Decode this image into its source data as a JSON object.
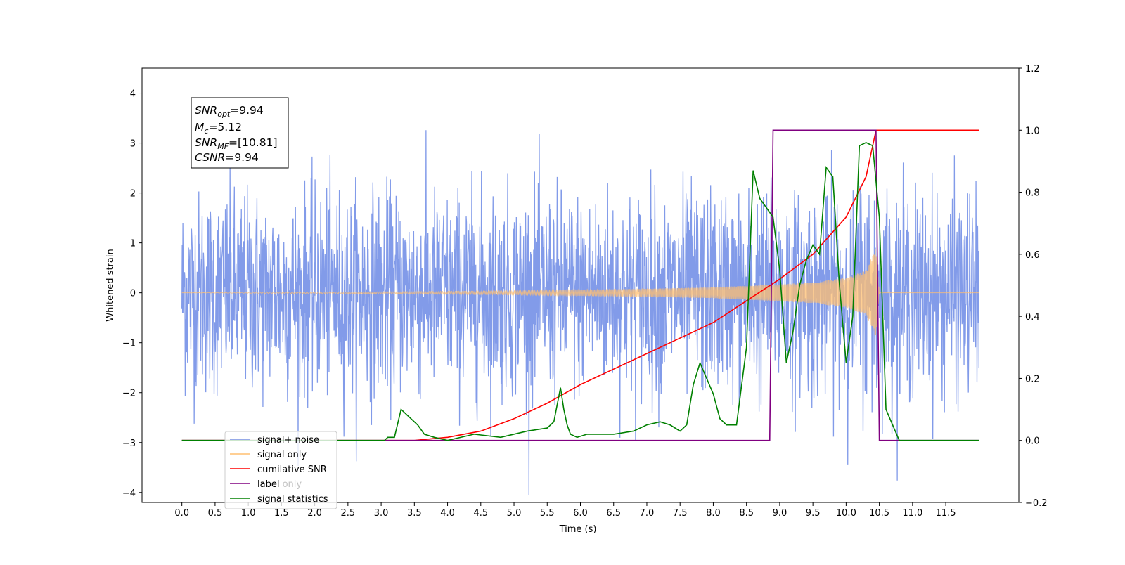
{
  "chart_data": {
    "type": "line",
    "xlabel": "Time (s)",
    "ylabel": "Whitened strain",
    "xlim": [
      -0.6,
      12.6
    ],
    "ylim": [
      -4.2,
      4.5
    ],
    "y2lim": [
      -0.2,
      1.2
    ],
    "x_ticks": [
      "0.0",
      "0.5",
      "1.0",
      "1.5",
      "2.0",
      "2.5",
      "3.0",
      "3.5",
      "4.0",
      "4.5",
      "5.0",
      "5.5",
      "6.0",
      "6.5",
      "7.0",
      "7.5",
      "8.0",
      "8.5",
      "9.0",
      "9.5",
      "10.0",
      "10.5",
      "11.0",
      "11.5"
    ],
    "y_ticks": [
      "4",
      "3",
      "2",
      "1",
      "0",
      "−1",
      "−2",
      "−3",
      "−4"
    ],
    "y2_ticks": [
      "1.2",
      "1.0",
      "0.8",
      "0.6",
      "0.4",
      "0.2",
      "0.0",
      "−0.2"
    ],
    "annotation": {
      "line1": {
        "name": "SNR",
        "sub": "opt",
        "value": "=9.94"
      },
      "line2": {
        "name": "M",
        "sub": "c",
        "value": "=5.12"
      },
      "line3": {
        "name": "SNR",
        "sub": "MF",
        "value": "=[10.81]"
      },
      "line4": {
        "name": "CSNR",
        "value": "=9.94"
      }
    },
    "legend": {
      "placement": "lower-left",
      "entries": [
        "signal+ noise",
        "signal only",
        "cumilative SNR",
        "label",
        "label only",
        "signal statistics"
      ]
    },
    "series": [
      {
        "name": "signal+ noise",
        "axis": "left",
        "color": "#7b96e8",
        "description": "Gaussian noise plus chirp",
        "x_range": [
          0,
          12.0
        ],
        "amplitude_std": 1.0
      },
      {
        "name": "signal only",
        "axis": "left",
        "color": "#ffbf70",
        "description": "chirp envelope",
        "envelope": [
          [
            0,
            0.0
          ],
          [
            1,
            0.01
          ],
          [
            2,
            0.015
          ],
          [
            3,
            0.02
          ],
          [
            4,
            0.03
          ],
          [
            5,
            0.04
          ],
          [
            6,
            0.06
          ],
          [
            7,
            0.08
          ],
          [
            8,
            0.11
          ],
          [
            8.5,
            0.14
          ],
          [
            9,
            0.17
          ],
          [
            9.5,
            0.21
          ],
          [
            10,
            0.3
          ],
          [
            10.3,
            0.45
          ],
          [
            10.45,
            0.9
          ],
          [
            10.5,
            0.0
          ],
          [
            12.0,
            0.0
          ]
        ]
      },
      {
        "name": "cumilative SNR",
        "axis": "right",
        "color": "#ff0000",
        "x": [
          0,
          3.5,
          4,
          4.5,
          5,
          5.5,
          6,
          6.5,
          7,
          7.5,
          8,
          8.5,
          9,
          9.5,
          10,
          10.3,
          10.45,
          12.0
        ],
        "y": [
          0,
          0.0,
          0.01,
          0.03,
          0.07,
          0.12,
          0.18,
          0.23,
          0.28,
          0.33,
          0.38,
          0.45,
          0.52,
          0.6,
          0.72,
          0.85,
          1.0,
          1.0
        ]
      },
      {
        "name": "label",
        "axis": "right",
        "color": "#800080",
        "x": [
          0,
          8.85,
          8.9,
          10.45,
          10.5,
          12.0
        ],
        "y": [
          0,
          0,
          1,
          1,
          0,
          0
        ]
      },
      {
        "name": "signal statistics",
        "axis": "right",
        "color": "#008000",
        "x": [
          0,
          3.05,
          3.1,
          3.2,
          3.3,
          3.4,
          3.55,
          3.65,
          3.8,
          4.0,
          4.4,
          4.8,
          5.2,
          5.5,
          5.6,
          5.7,
          5.75,
          5.8,
          5.85,
          5.95,
          6.1,
          6.5,
          6.8,
          7.0,
          7.2,
          7.35,
          7.5,
          7.6,
          7.7,
          7.8,
          7.9,
          8.0,
          8.1,
          8.2,
          8.35,
          8.5,
          8.6,
          8.7,
          8.8,
          8.9,
          9.0,
          9.1,
          9.2,
          9.3,
          9.4,
          9.5,
          9.6,
          9.7,
          9.8,
          9.9,
          10.0,
          10.1,
          10.2,
          10.3,
          10.4,
          10.5,
          10.6,
          10.7,
          10.8,
          12.0
        ],
        "y": [
          0,
          0,
          0.01,
          0.01,
          0.1,
          0.08,
          0.05,
          0.02,
          0.01,
          0.0,
          0.02,
          0.01,
          0.03,
          0.04,
          0.06,
          0.17,
          0.1,
          0.05,
          0.02,
          0.01,
          0.02,
          0.02,
          0.03,
          0.05,
          0.06,
          0.05,
          0.03,
          0.05,
          0.18,
          0.25,
          0.2,
          0.15,
          0.07,
          0.05,
          0.05,
          0.3,
          0.87,
          0.78,
          0.75,
          0.72,
          0.55,
          0.25,
          0.35,
          0.5,
          0.58,
          0.63,
          0.6,
          0.88,
          0.85,
          0.5,
          0.25,
          0.4,
          0.95,
          0.96,
          0.95,
          0.72,
          0.1,
          0.05,
          0.0,
          0.0
        ]
      }
    ]
  }
}
